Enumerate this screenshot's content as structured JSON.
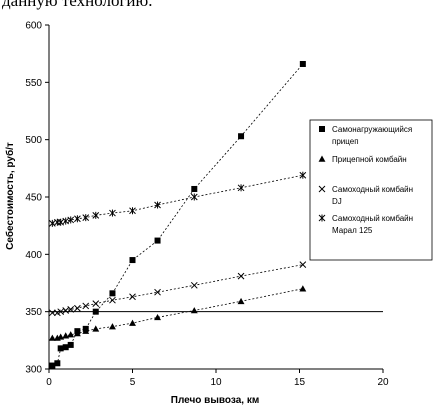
{
  "top_text": "данную технологию.",
  "chart_data": {
    "type": "scatter",
    "title": "",
    "xlabel": "Плечо вывоза, км",
    "ylabel": "Себестоимость, руб/т",
    "xlim": [
      0,
      20
    ],
    "ylim": [
      300,
      600
    ],
    "x_ticks": [
      "0",
      "5",
      "10",
      "15",
      "20"
    ],
    "y_ticks": [
      "300",
      "350",
      "400",
      "450",
      "500",
      "550",
      "600"
    ],
    "grid": false,
    "legend_position": "right",
    "reference_line_y": 350,
    "series": [
      {
        "name": "Самонагружающийся прицеп",
        "marker": "square",
        "points": [
          [
            0.2,
            303
          ],
          [
            0.5,
            305
          ],
          [
            0.7,
            318
          ],
          [
            1.0,
            319
          ],
          [
            1.3,
            321
          ],
          [
            1.7,
            333
          ],
          [
            2.2,
            335
          ],
          [
            2.8,
            350
          ],
          [
            3.8,
            366
          ],
          [
            5.0,
            395
          ],
          [
            6.5,
            412
          ],
          [
            8.7,
            457
          ],
          [
            11.5,
            503
          ],
          [
            15.2,
            566
          ]
        ]
      },
      {
        "name": "Прицепной комбайн",
        "marker": "triangle",
        "points": [
          [
            0.2,
            327
          ],
          [
            0.5,
            327
          ],
          [
            0.7,
            328
          ],
          [
            1.0,
            329
          ],
          [
            1.3,
            330
          ],
          [
            1.7,
            331
          ],
          [
            2.2,
            333
          ],
          [
            2.8,
            335
          ],
          [
            3.8,
            337
          ],
          [
            5.0,
            340
          ],
          [
            6.5,
            345
          ],
          [
            8.7,
            351
          ],
          [
            11.5,
            359
          ],
          [
            15.2,
            370
          ]
        ]
      },
      {
        "name": "Самоходный комбайн DJ",
        "marker": "x",
        "points": [
          [
            0.2,
            349
          ],
          [
            0.5,
            349
          ],
          [
            0.7,
            350
          ],
          [
            1.0,
            351
          ],
          [
            1.3,
            352
          ],
          [
            1.7,
            353
          ],
          [
            2.2,
            355
          ],
          [
            2.8,
            357
          ],
          [
            3.8,
            360
          ],
          [
            5.0,
            363
          ],
          [
            6.5,
            367
          ],
          [
            8.7,
            373
          ],
          [
            11.5,
            381
          ],
          [
            15.2,
            391
          ]
        ]
      },
      {
        "name": "Самоходный комбайн Марал 125",
        "marker": "star",
        "points": [
          [
            0.2,
            427
          ],
          [
            0.5,
            428
          ],
          [
            0.7,
            428
          ],
          [
            1.0,
            429
          ],
          [
            1.3,
            430
          ],
          [
            1.7,
            431
          ],
          [
            2.2,
            432
          ],
          [
            2.8,
            434
          ],
          [
            3.8,
            436
          ],
          [
            5.0,
            438
          ],
          [
            6.5,
            443
          ],
          [
            8.7,
            450
          ],
          [
            11.5,
            458
          ],
          [
            15.2,
            469
          ]
        ]
      }
    ]
  },
  "legend": {
    "items": [
      {
        "lines": [
          "Самонагружающийся",
          "прицеп"
        ],
        "marker": "square"
      },
      {
        "lines": [
          "Прицепной комбайн"
        ],
        "marker": "triangle"
      },
      {
        "lines": [
          "Самоходный комбайн",
          "DJ"
        ],
        "marker": "x"
      },
      {
        "lines": [
          "Самоходный комбайн",
          "Марал 125"
        ],
        "marker": "star"
      }
    ]
  }
}
